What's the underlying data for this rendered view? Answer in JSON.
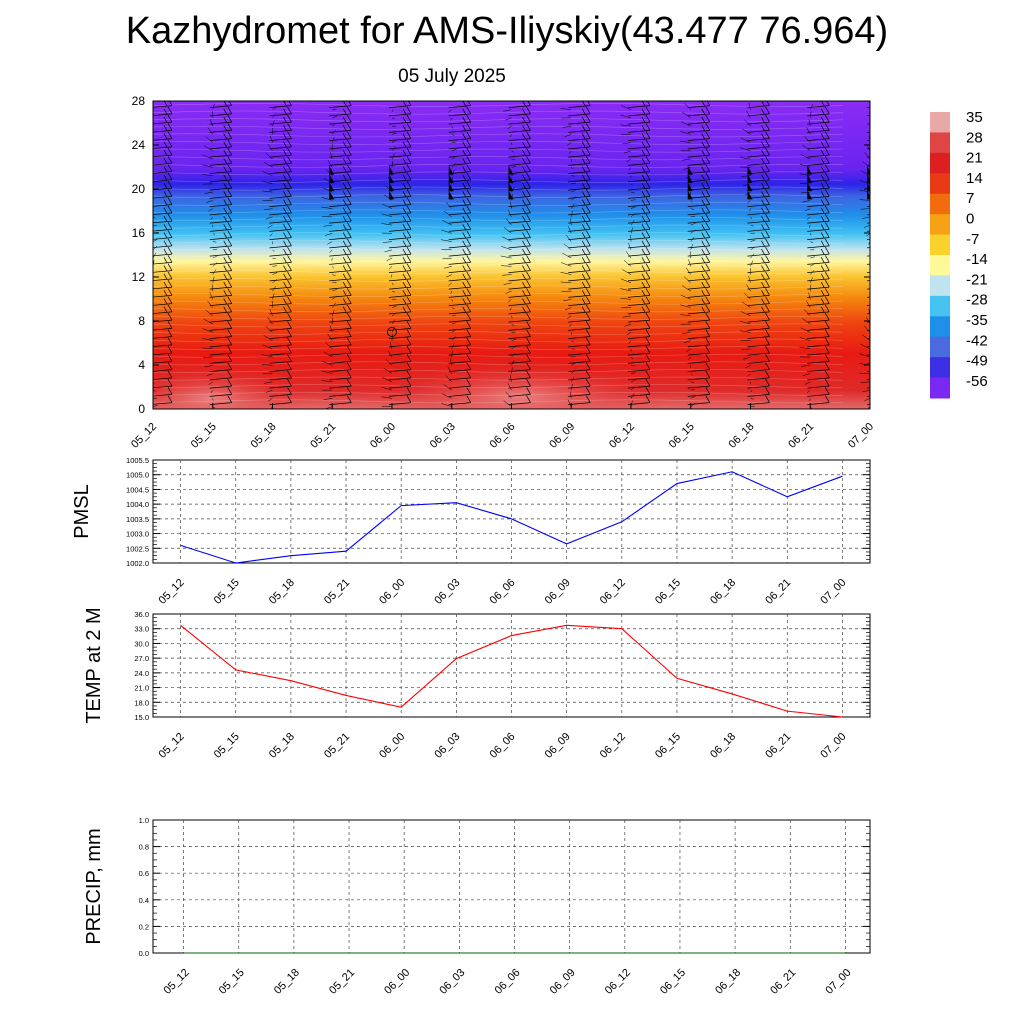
{
  "title": "Kazhydromet for AMS-Iliyskiy(43.477 76.964)",
  "subtitle": "05 July 2025",
  "time_labels": [
    "05_12",
    "05_15",
    "05_18",
    "05_21",
    "06_00",
    "06_03",
    "06_06",
    "06_09",
    "06_12",
    "06_15",
    "06_18",
    "06_21",
    "07_00"
  ],
  "chart_data": [
    {
      "type": "heatmap",
      "id": "cross-section",
      "x_categories": [
        "05_12",
        "05_15",
        "05_18",
        "05_21",
        "06_00",
        "06_03",
        "06_06",
        "06_09",
        "06_12",
        "06_15",
        "06_18",
        "06_21",
        "07_00"
      ],
      "ylim": [
        0,
        28
      ],
      "yticks": [
        0,
        4,
        8,
        12,
        16,
        20,
        24,
        28
      ],
      "colorbar_labels": [
        "35",
        "28",
        "21",
        "14",
        "7",
        "0",
        "-7",
        "-14",
        "-21",
        "-28",
        "-35",
        "-42",
        "-49",
        "-56"
      ],
      "colorbar_colors": [
        "#e8a8a8",
        "#e04545",
        "#dd1f1f",
        "#e83a14",
        "#f26b0c",
        "#f7a114",
        "#fbd12c",
        "#fff99a",
        "#bfe3ef",
        "#47c3f2",
        "#1e90ea",
        "#4a6ae0",
        "#3d2fe6",
        "#7a28f2"
      ],
      "temperature_profile": [
        {
          "height": 0,
          "value": 34
        },
        {
          "height": 4,
          "value": 26
        },
        {
          "height": 8,
          "value": 18
        },
        {
          "height": 11,
          "value": 2
        },
        {
          "height": 13.5,
          "value": -10
        },
        {
          "height": 16,
          "value": -28
        },
        {
          "height": 18,
          "value": -38
        },
        {
          "height": 20,
          "value": -50
        },
        {
          "height": 22,
          "value": -56
        },
        {
          "height": 28,
          "value": -60
        }
      ],
      "wind_barbs": "wind barbs at every time step and ~0.7 km height interval"
    },
    {
      "type": "line",
      "id": "pmsl",
      "ylabel": "PMSL",
      "x": [
        "05_12",
        "05_15",
        "05_18",
        "05_21",
        "06_00",
        "06_03",
        "06_06",
        "06_09",
        "06_12",
        "06_15",
        "06_18",
        "06_21",
        "07_00"
      ],
      "ylim": [
        1002.0,
        1005.5
      ],
      "yticks": [
        "1002.0",
        "1002.5",
        "1003.0",
        "1003.5",
        "1004.0",
        "1004.5",
        "1005.0",
        "1005.5"
      ],
      "series": [
        {
          "values": [
            1002.6,
            1002.0,
            1002.25,
            1002.4,
            1003.95,
            1004.05,
            1003.5,
            1002.65,
            1003.4,
            1004.7,
            1005.1,
            1004.25,
            1004.95
          ],
          "color": "#0000ff"
        }
      ],
      "grid": true
    },
    {
      "type": "line",
      "id": "temp2m",
      "ylabel": "TEMP at 2 M",
      "x": [
        "05_12",
        "05_15",
        "05_18",
        "05_21",
        "06_00",
        "06_03",
        "06_06",
        "06_09",
        "06_12",
        "06_15",
        "06_18",
        "06_21",
        "07_00"
      ],
      "ylim": [
        15.0,
        36.0
      ],
      "yticks": [
        "15.0",
        "18.0",
        "21.0",
        "24.0",
        "27.0",
        "30.0",
        "33.0",
        "36.0"
      ],
      "series": [
        {
          "values": [
            33.7,
            24.6,
            22.4,
            19.4,
            17.0,
            26.9,
            31.6,
            33.7,
            33.0,
            22.9,
            19.7,
            16.2,
            15.0
          ],
          "color": "#ff0000"
        }
      ],
      "grid": true
    },
    {
      "type": "line",
      "id": "precip",
      "ylabel": "PRECIP, mm",
      "x": [
        "05_12",
        "05_15",
        "05_18",
        "05_21",
        "06_00",
        "06_03",
        "06_06",
        "06_09",
        "06_12",
        "06_15",
        "06_18",
        "06_21",
        "07_00"
      ],
      "ylim": [
        0.0,
        1.0
      ],
      "yticks": [
        "0.0",
        "0.2",
        "0.4",
        "0.6",
        "0.8",
        "1.0"
      ],
      "series": [
        {
          "values": [
            0,
            0,
            0,
            0,
            0,
            0,
            0,
            0,
            0,
            0,
            0,
            0,
            0
          ],
          "color": "#006400"
        }
      ],
      "grid": true
    }
  ]
}
